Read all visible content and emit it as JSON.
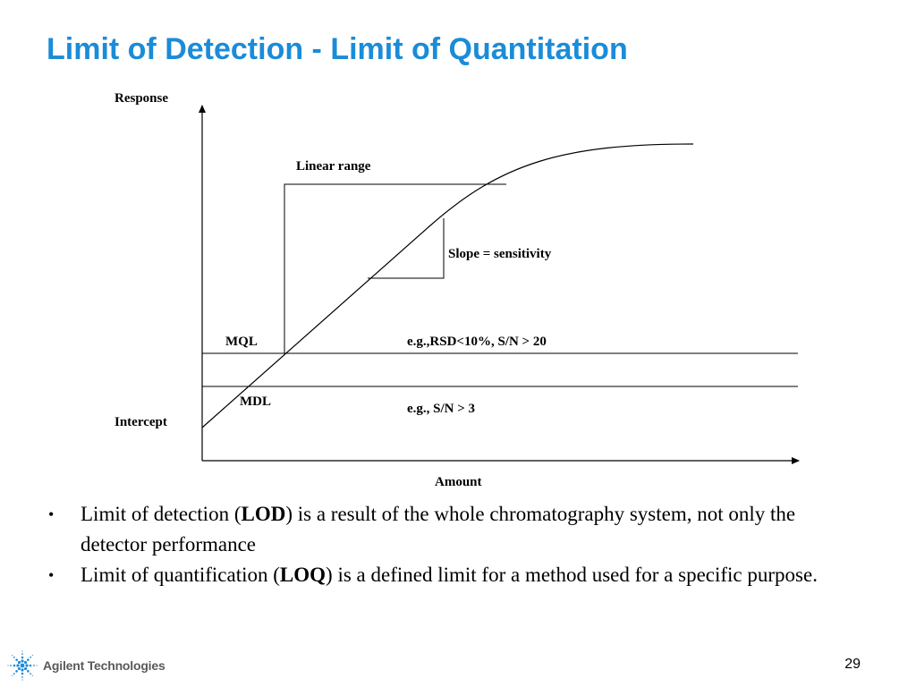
{
  "slide": {
    "title": "Limit of Detection - Limit of Quantitation",
    "page_number": "29"
  },
  "diagram": {
    "y_axis_label": "Response",
    "x_axis_label": "Amount",
    "intercept_label": "Intercept",
    "linear_range_label": "Linear range",
    "slope_label": "Slope = sensitivity",
    "mql_label": "MQL",
    "mql_criteria": "e.g.,RSD<10%, S/N > 20",
    "mdl_label": "MDL",
    "mdl_criteria": "e.g., S/N > 3"
  },
  "bullets": [
    {
      "pre": "Limit of detection (",
      "bold": "LOD",
      "post": ") is a result of the whole chromatography system, not only the detector performance"
    },
    {
      "pre": "Limit of quantification (",
      "bold": "LOQ",
      "post": ") is a defined limit for a method used for a specific purpose."
    }
  ],
  "bullet_marker": "•",
  "footer": {
    "brand": "Agilent Technologies",
    "logo_icon": "agilent-spark-icon"
  },
  "colors": {
    "title": "#1a8cd8",
    "logo": "#1a8cd8"
  }
}
